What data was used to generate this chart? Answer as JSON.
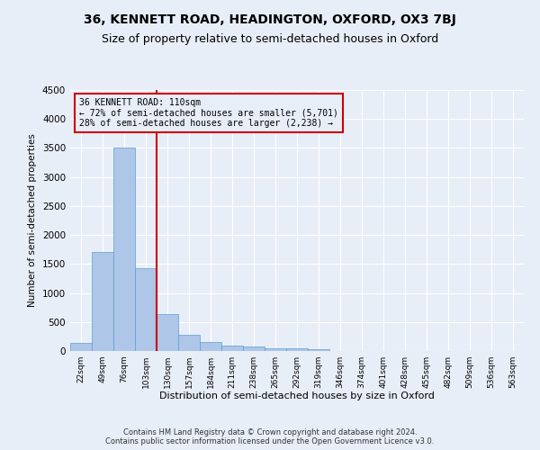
{
  "title": "36, KENNETT ROAD, HEADINGTON, OXFORD, OX3 7BJ",
  "subtitle": "Size of property relative to semi-detached houses in Oxford",
  "xlabel": "Distribution of semi-detached houses by size in Oxford",
  "ylabel": "Number of semi-detached properties",
  "footnote1": "Contains HM Land Registry data © Crown copyright and database right 2024.",
  "footnote2": "Contains public sector information licensed under the Open Government Licence v3.0.",
  "bar_values": [
    140,
    1700,
    3500,
    1420,
    630,
    280,
    160,
    100,
    70,
    50,
    40,
    30
  ],
  "all_labels": [
    "22sqm",
    "49sqm",
    "76sqm",
    "103sqm",
    "130sqm",
    "157sqm",
    "184sqm",
    "211sqm",
    "238sqm",
    "265sqm",
    "292sqm",
    "319sqm",
    "346sqm",
    "374sqm",
    "401sqm",
    "428sqm",
    "455sqm",
    "482sqm",
    "509sqm",
    "536sqm",
    "563sqm"
  ],
  "bar_color": "#aec6e8",
  "bar_edge_color": "#5a9fd4",
  "property_line_x": 3.5,
  "property_line_label": "36 KENNETT ROAD: 110sqm",
  "annotation_line1": "← 72% of semi-detached houses are smaller (5,701)",
  "annotation_line2": "28% of semi-detached houses are larger (2,238) →",
  "annotation_box_color": "#cc0000",
  "ylim": [
    0,
    4500
  ],
  "yticks": [
    0,
    500,
    1000,
    1500,
    2000,
    2500,
    3000,
    3500,
    4000,
    4500
  ],
  "background_color": "#e8eef8",
  "grid_color": "#ffffff",
  "title_fontsize": 10,
  "subtitle_fontsize": 9
}
